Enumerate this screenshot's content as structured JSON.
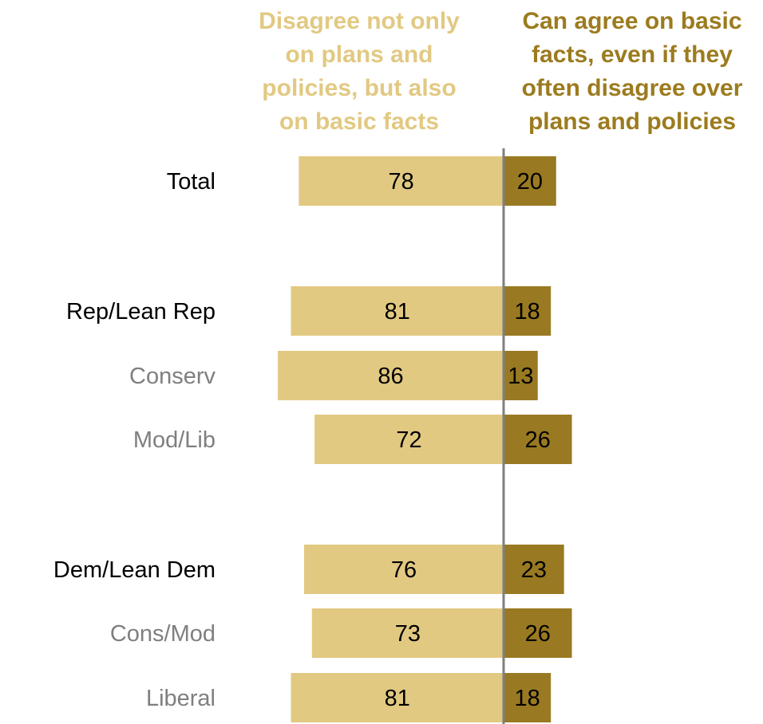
{
  "chart_data": {
    "type": "bar",
    "orientation": "horizontal-diverging",
    "series": [
      {
        "name": "Disagree not only\non plans and\npolicies, but also\non basic facts",
        "values": [
          78,
          81,
          86,
          72,
          76,
          73,
          81
        ],
        "color": "#e2c982",
        "text_color": "#e2c982"
      },
      {
        "name": "Can agree on basic\nfacts, even if they\noften disagree over\nplans and policies",
        "values": [
          20,
          18,
          13,
          26,
          23,
          26,
          18
        ],
        "color": "#997a22",
        "text_color": "#9c7b1e"
      }
    ],
    "categories": [
      {
        "label": "Total",
        "level": "main"
      },
      {
        "label": "Rep/Lean Rep",
        "level": "main"
      },
      {
        "label": "Conserv",
        "level": "sub"
      },
      {
        "label": "Mod/Lib",
        "level": "sub"
      },
      {
        "label": "Dem/Lean Dem",
        "level": "main"
      },
      {
        "label": "Cons/Mod",
        "level": "sub"
      },
      {
        "label": "Liberal",
        "level": "sub"
      }
    ],
    "grid": false,
    "legend_placement": "top",
    "colors": {
      "main_label": "#000000",
      "sub_label": "#7f7f7f",
      "value_label": "#000000",
      "axis_line": "#7f7f7f"
    }
  }
}
